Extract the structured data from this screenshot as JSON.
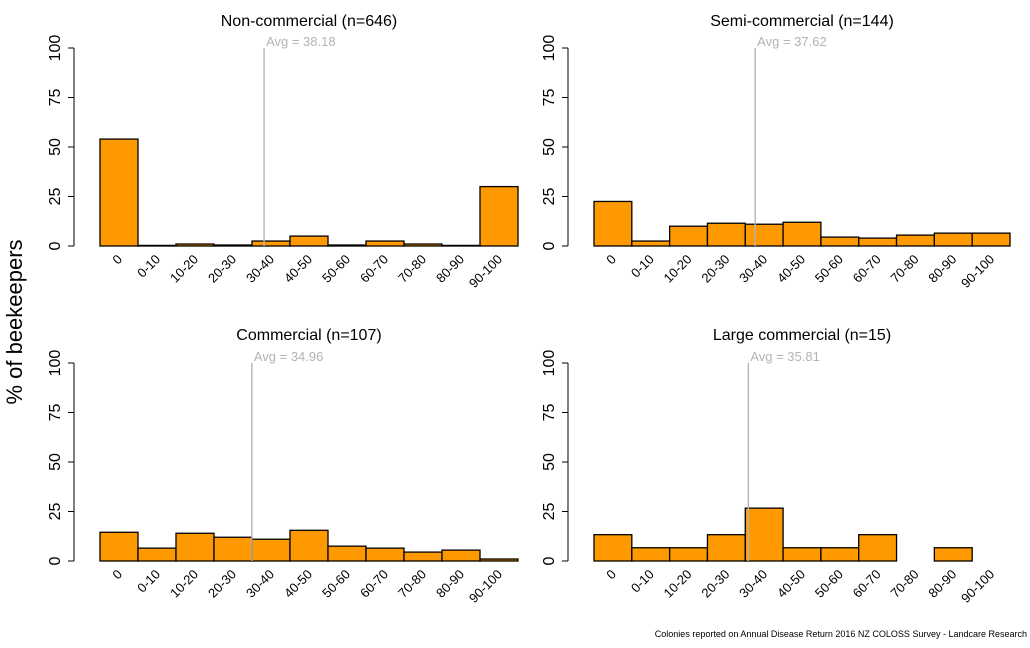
{
  "figure": {
    "ylabel": "% of beekeepers",
    "footnote": "Colonies reported on Annual Disease Return 2016 NZ COLOSS Survey - Landcare Research"
  },
  "colors": {
    "bar_fill": "#ff9900",
    "bar_stroke": "#000000",
    "avg_line": "#b3b3b3",
    "avg_text": "#b3b3b3",
    "axis": "#000000"
  },
  "chart_data": [
    {
      "type": "bar",
      "title": "Non-commercial (n=646)",
      "categories": [
        "0",
        "0-10",
        "10-20",
        "20-30",
        "30-40",
        "40-50",
        "50-60",
        "60-70",
        "70-80",
        "80-90",
        "90-100"
      ],
      "values": [
        54,
        0.3,
        1,
        0.5,
        2.5,
        5,
        0.5,
        2.5,
        1,
        0.3,
        30
      ],
      "average": 38.18,
      "avg_label": "Avg = 38.18",
      "ylim": [
        0,
        100
      ],
      "yticks": [
        0,
        25,
        50,
        75,
        100
      ],
      "grid": false
    },
    {
      "type": "bar",
      "title": "Semi-commercial (n=144)",
      "categories": [
        "0",
        "0-10",
        "10-20",
        "20-30",
        "30-40",
        "40-50",
        "50-60",
        "60-70",
        "70-80",
        "80-90",
        "90-100"
      ],
      "values": [
        22.5,
        2.5,
        10,
        11.5,
        11,
        12,
        4.5,
        4,
        5.5,
        6.5,
        6.5
      ],
      "average": 37.62,
      "avg_label": "Avg = 37.62",
      "ylim": [
        0,
        100
      ],
      "yticks": [
        0,
        25,
        50,
        75,
        100
      ],
      "grid": false
    },
    {
      "type": "bar",
      "title": "Commercial (n=107)",
      "categories": [
        "0",
        "0-10",
        "10-20",
        "20-30",
        "30-40",
        "40-50",
        "50-60",
        "60-70",
        "70-80",
        "80-90",
        "90-100"
      ],
      "values": [
        14.5,
        6.5,
        14,
        12,
        11,
        15.5,
        7.5,
        6.5,
        4.5,
        5.5,
        1
      ],
      "average": 34.96,
      "avg_label": "Avg = 34.96",
      "ylim": [
        0,
        100
      ],
      "yticks": [
        0,
        25,
        50,
        75,
        100
      ],
      "grid": false
    },
    {
      "type": "bar",
      "title": "Large commercial (n=15)",
      "categories": [
        "0",
        "0-10",
        "10-20",
        "20-30",
        "30-40",
        "40-50",
        "50-60",
        "60-70",
        "70-80",
        "80-90",
        "90-100"
      ],
      "values": [
        13.3,
        6.7,
        6.7,
        13.3,
        26.7,
        6.7,
        6.7,
        13.3,
        0,
        6.7,
        0
      ],
      "average": 35.81,
      "avg_label": "Avg = 35.81",
      "ylim": [
        0,
        100
      ],
      "yticks": [
        0,
        25,
        50,
        75,
        100
      ],
      "grid": false
    }
  ]
}
